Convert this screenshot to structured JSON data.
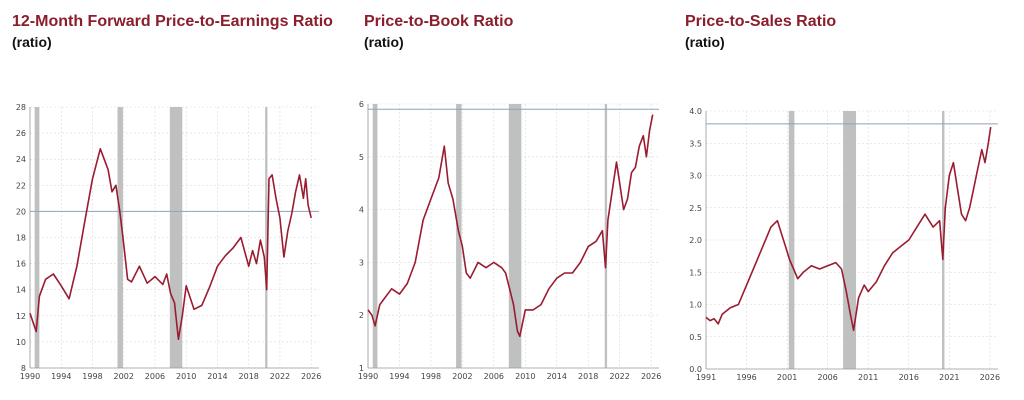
{
  "colors": {
    "title": "#8b1e2d",
    "line": "#9b1b30",
    "recession": "#bfc1c0",
    "reference": "#8ea4b8",
    "grid": "#d9d9d9"
  },
  "chart_data": [
    {
      "type": "line",
      "title": "12-Month Forward Price-to-Earnings Ratio",
      "subtitle": "(ratio)",
      "ylim": [
        8,
        28
      ],
      "yticks": [
        "8",
        "10",
        "12",
        "14",
        "16",
        "18",
        "20",
        "22",
        "24",
        "26",
        "28"
      ],
      "xlim": [
        1990,
        2027
      ],
      "xticks": [
        "1990",
        "1994",
        "1998",
        "2002",
        "2006",
        "2010",
        "2014",
        "2018",
        "2022",
        "2026"
      ],
      "grid": true,
      "reference_line": 20,
      "recessions": [
        [
          1990.6,
          1991.2
        ],
        [
          2001.2,
          2001.9
        ],
        [
          2007.9,
          2009.5
        ],
        [
          2020.1,
          2020.4
        ]
      ],
      "series": [
        {
          "x": [
            1990.0,
            1990.5,
            1990.8,
            1991.2,
            1992.0,
            1993.0,
            1994.0,
            1995.0,
            1996.0,
            1997.0,
            1998.0,
            1999.0,
            1999.5,
            2000.0,
            2000.5,
            2001.0,
            2001.5,
            2002.0,
            2002.5,
            2003.0,
            2004.0,
            2005.0,
            2006.0,
            2007.0,
            2007.5,
            2008.0,
            2008.5,
            2009.0,
            2009.5,
            2010.0,
            2011.0,
            2012.0,
            2013.0,
            2014.0,
            2015.0,
            2016.0,
            2017.0,
            2018.0,
            2018.5,
            2019.0,
            2019.5,
            2020.0,
            2020.3,
            2020.6,
            2021.0,
            2021.5,
            2022.0,
            2022.5,
            2023.0,
            2023.5,
            2024.0,
            2024.5,
            2025.0,
            2025.3,
            2025.6,
            2026.0
          ],
          "values": [
            12.2,
            11.3,
            10.8,
            13.5,
            14.8,
            15.2,
            14.3,
            13.3,
            15.8,
            19.2,
            22.5,
            24.8,
            24.0,
            23.2,
            21.5,
            22.0,
            20.0,
            17.5,
            14.8,
            14.6,
            15.8,
            14.5,
            15.0,
            14.4,
            15.2,
            13.7,
            13.0,
            10.2,
            12.0,
            14.3,
            12.5,
            12.8,
            14.2,
            15.8,
            16.6,
            17.2,
            18.0,
            15.8,
            17.0,
            16.0,
            17.8,
            16.5,
            14.0,
            22.5,
            22.8,
            21.0,
            19.5,
            16.5,
            18.5,
            19.8,
            21.5,
            22.8,
            21.0,
            22.5,
            20.5,
            19.5
          ]
        }
      ]
    },
    {
      "type": "line",
      "title": "Price-to-Book Ratio",
      "subtitle": "(ratio)",
      "ylim": [
        1,
        6
      ],
      "yticks": [
        "1",
        "2",
        "3",
        "4",
        "5",
        "6"
      ],
      "xlim": [
        1990,
        2027
      ],
      "xticks": [
        "1990",
        "1994",
        "1998",
        "2002",
        "2006",
        "2010",
        "2014",
        "2018",
        "2022",
        "2026"
      ],
      "grid": true,
      "reference_line": 5.9,
      "recessions": [
        [
          1990.6,
          1991.2
        ],
        [
          2001.2,
          2001.9
        ],
        [
          2007.9,
          2009.5
        ],
        [
          2020.1,
          2020.4
        ]
      ],
      "series": [
        {
          "x": [
            1990.0,
            1990.5,
            1990.9,
            1991.5,
            1992.0,
            1993.0,
            1994.0,
            1995.0,
            1996.0,
            1997.0,
            1998.0,
            1999.0,
            1999.7,
            2000.2,
            2000.8,
            2001.5,
            2002.0,
            2002.5,
            2003.0,
            2004.0,
            2005.0,
            2006.0,
            2007.0,
            2007.5,
            2008.0,
            2008.5,
            2009.0,
            2009.3,
            2010.0,
            2011.0,
            2012.0,
            2013.0,
            2014.0,
            2015.0,
            2016.0,
            2017.0,
            2018.0,
            2019.0,
            2019.8,
            2020.2,
            2020.5,
            2021.0,
            2021.6,
            2022.0,
            2022.5,
            2023.0,
            2023.5,
            2024.0,
            2024.5,
            2025.0,
            2025.4,
            2025.8,
            2026.2
          ],
          "values": [
            2.1,
            2.0,
            1.8,
            2.2,
            2.3,
            2.5,
            2.4,
            2.6,
            3.0,
            3.8,
            4.2,
            4.6,
            5.2,
            4.5,
            4.2,
            3.6,
            3.3,
            2.8,
            2.7,
            3.0,
            2.9,
            3.0,
            2.9,
            2.8,
            2.5,
            2.2,
            1.7,
            1.6,
            2.1,
            2.1,
            2.2,
            2.5,
            2.7,
            2.8,
            2.8,
            3.0,
            3.3,
            3.4,
            3.6,
            2.9,
            3.8,
            4.3,
            4.9,
            4.5,
            4.0,
            4.2,
            4.7,
            4.8,
            5.2,
            5.4,
            5.0,
            5.5,
            5.8
          ]
        }
      ]
    },
    {
      "type": "line",
      "title": "Price-to-Sales Ratio",
      "subtitle": "(ratio)",
      "ylim": [
        0,
        4
      ],
      "yticks": [
        "0.0",
        "0.5",
        "1.0",
        "1.5",
        "2.0",
        "2.5",
        "3.0",
        "3.5",
        "4.0"
      ],
      "xlim": [
        1991,
        2027
      ],
      "xticks": [
        "1991",
        "1996",
        "2001",
        "2006",
        "2011",
        "2016",
        "2021",
        "2026"
      ],
      "grid": true,
      "reference_line": 3.8,
      "recessions": [
        [
          2001.2,
          2001.9
        ],
        [
          2007.9,
          2009.5
        ],
        [
          2020.1,
          2020.4
        ]
      ],
      "series": [
        {
          "x": [
            1991.0,
            1991.5,
            1992.0,
            1992.5,
            1993.0,
            1994.0,
            1995.0,
            1996.0,
            1997.0,
            1998.0,
            1999.0,
            1999.8,
            2000.3,
            2000.8,
            2001.3,
            2001.8,
            2002.3,
            2003.0,
            2004.0,
            2005.0,
            2006.0,
            2007.0,
            2007.7,
            2008.3,
            2008.8,
            2009.2,
            2009.8,
            2010.5,
            2011.0,
            2012.0,
            2013.0,
            2014.0,
            2015.0,
            2016.0,
            2017.0,
            2018.0,
            2019.0,
            2019.8,
            2020.2,
            2020.5,
            2021.0,
            2021.5,
            2022.0,
            2022.5,
            2023.0,
            2023.5,
            2024.0,
            2024.5,
            2025.0,
            2025.4,
            2025.8,
            2026.1
          ],
          "values": [
            0.8,
            0.75,
            0.78,
            0.7,
            0.85,
            0.95,
            1.0,
            1.3,
            1.6,
            1.9,
            2.2,
            2.3,
            2.1,
            1.9,
            1.7,
            1.55,
            1.4,
            1.5,
            1.6,
            1.55,
            1.6,
            1.65,
            1.55,
            1.2,
            0.85,
            0.6,
            1.1,
            1.3,
            1.2,
            1.35,
            1.6,
            1.8,
            1.9,
            2.0,
            2.2,
            2.4,
            2.2,
            2.3,
            1.7,
            2.5,
            3.0,
            3.2,
            2.8,
            2.4,
            2.3,
            2.5,
            2.8,
            3.1,
            3.4,
            3.2,
            3.5,
            3.75
          ]
        }
      ]
    }
  ]
}
